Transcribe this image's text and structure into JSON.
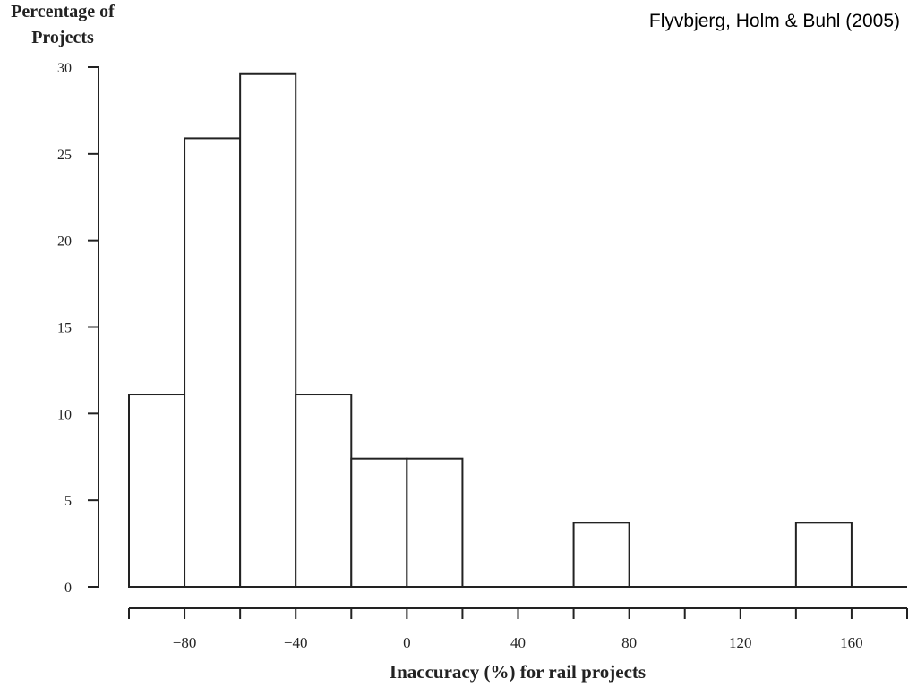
{
  "citation": "Flyvbjerg, Holm & Buhl (2005)",
  "chart_data": {
    "type": "bar",
    "ylabel_line1": "Percentage of",
    "ylabel_line2": "Projects",
    "xlabel": "Inaccuracy (%) for rail projects",
    "ylim": [
      0,
      30
    ],
    "xlim": [
      -100,
      180
    ],
    "grid": false,
    "bin_width": 20,
    "bins": [
      {
        "start": -100,
        "end": -80,
        "value": 11.1
      },
      {
        "start": -80,
        "end": -60,
        "value": 25.9
      },
      {
        "start": -60,
        "end": -40,
        "value": 29.6
      },
      {
        "start": -40,
        "end": -20,
        "value": 11.1
      },
      {
        "start": -20,
        "end": 0,
        "value": 7.4
      },
      {
        "start": 0,
        "end": 20,
        "value": 7.4
      },
      {
        "start": 20,
        "end": 40,
        "value": 0
      },
      {
        "start": 40,
        "end": 60,
        "value": 0
      },
      {
        "start": 60,
        "end": 80,
        "value": 3.7
      },
      {
        "start": 80,
        "end": 100,
        "value": 0
      },
      {
        "start": 100,
        "end": 120,
        "value": 0
      },
      {
        "start": 120,
        "end": 140,
        "value": 0
      },
      {
        "start": 140,
        "end": 160,
        "value": 3.7
      },
      {
        "start": 160,
        "end": 180,
        "value": 0
      }
    ],
    "yticks": [
      {
        "value": 0,
        "label": "0"
      },
      {
        "value": 5,
        "label": "5"
      },
      {
        "value": 10,
        "label": "10"
      },
      {
        "value": 15,
        "label": "15"
      },
      {
        "value": 20,
        "label": "20"
      },
      {
        "value": 25,
        "label": "25"
      },
      {
        "value": 30,
        "label": "30"
      }
    ],
    "xticks": [
      -100,
      -80,
      -60,
      -40,
      -20,
      0,
      20,
      40,
      60,
      80,
      100,
      120,
      140,
      160,
      180
    ],
    "xtick_labels": [
      {
        "value": -80,
        "label": "−80"
      },
      {
        "value": -40,
        "label": "−40"
      },
      {
        "value": 0,
        "label": "0"
      },
      {
        "value": 40,
        "label": "40"
      },
      {
        "value": 80,
        "label": "80"
      },
      {
        "value": 120,
        "label": "120"
      },
      {
        "value": 160,
        "label": "160"
      }
    ]
  }
}
